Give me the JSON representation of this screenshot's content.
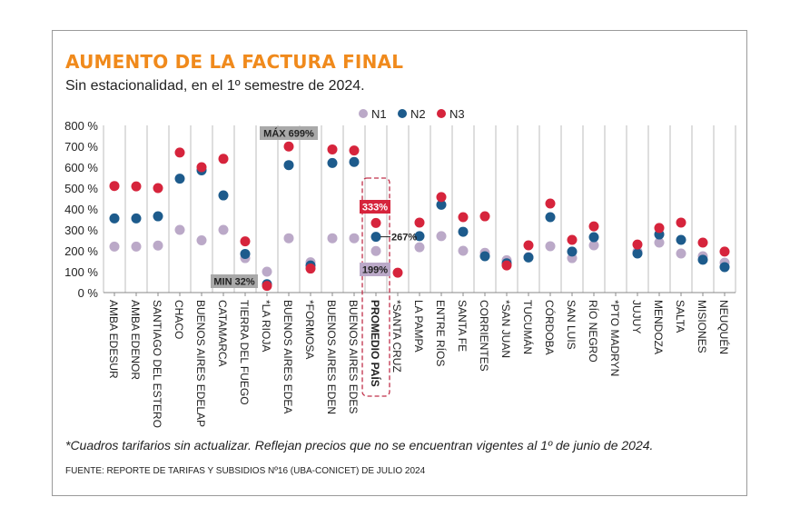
{
  "title": "AUMENTO DE LA FACTURA FINAL",
  "subtitle": "Sin estacionalidad, en el 1º semestre de 2024.",
  "footnote": "*Cuadros tarifarios sin actualizar. Reflejan precios que no se encuentran vigentes al 1º de junio de 2024.",
  "source": "FUENTE: REPORTE DE TARIFAS Y SUBSIDIOS Nº16 (UBA-CONICET) DE JULIO 2024",
  "chart_data": {
    "type": "scatter",
    "ylim": [
      0,
      800
    ],
    "yticks": [
      0,
      100,
      200,
      300,
      400,
      500,
      600,
      700,
      800
    ],
    "ytick_labels": [
      "0 %",
      "100 %",
      "200 %",
      "300 %",
      "400 %",
      "500 %",
      "600 %",
      "700 %",
      "800 %"
    ],
    "grid": "vertical",
    "legend": "top-center",
    "colors": {
      "N1": "#bba9c8",
      "N2": "#1d5b8c",
      "N3": "#d6243c"
    },
    "categories": [
      "AMBA EDESUR",
      "AMBA EDENOR",
      "SANTIAGO DEL ESTERO",
      "CHACO",
      "BUENOS AIRES EDELAP",
      "CATAMARCA",
      "TIERRA DEL FUEGO",
      "*LA RIOJA",
      "BUENOS AIRES EDEA",
      "*FORMOSA",
      "BUENOS AIRES EDEN",
      "BUENOS AIRES EDES",
      "PROMEDIO PAÍS",
      "*SANTA CRUZ",
      "LA PAMPA",
      "ENTRE RÍOS",
      "SANTA FE",
      "CORRIENTES",
      "*SAN JUAN",
      "TUCUMÁN",
      "CÓRDOBA",
      "SAN LUIS",
      "RÍO NEGRO",
      "*PTO MADRYN",
      "JUJUY",
      "MENDOZA",
      "SALTA",
      "MISIONES",
      "NEUQUÉN"
    ],
    "series": [
      {
        "name": "N1",
        "values": [
          220,
          220,
          225,
          300,
          250,
          300,
          165,
          100,
          260,
          145,
          260,
          260,
          199,
          null,
          217,
          270,
          200,
          190,
          155,
          170,
          222,
          165,
          226,
          null,
          196,
          239,
          187,
          174,
          143
        ]
      },
      {
        "name": "N2",
        "values": [
          355,
          355,
          365,
          545,
          585,
          465,
          185,
          40,
          610,
          130,
          620,
          625,
          267,
          null,
          270,
          420,
          291,
          174,
          140,
          168,
          361,
          196,
          265,
          null,
          187,
          278,
          252,
          157,
          122
        ]
      },
      {
        "name": "N3",
        "values": [
          510,
          508,
          500,
          670,
          600,
          640,
          245,
          32,
          699,
          115,
          685,
          680,
          333,
          95,
          335,
          457,
          361,
          365,
          130,
          226,
          426,
          252,
          317,
          null,
          230,
          309,
          335,
          239,
          196
        ]
      }
    ],
    "annotations": {
      "max": "MÁX 699%",
      "min": "MIN 32%",
      "avg_n3": "333%",
      "avg_n2": "267%",
      "avg_n1": "199%"
    }
  }
}
